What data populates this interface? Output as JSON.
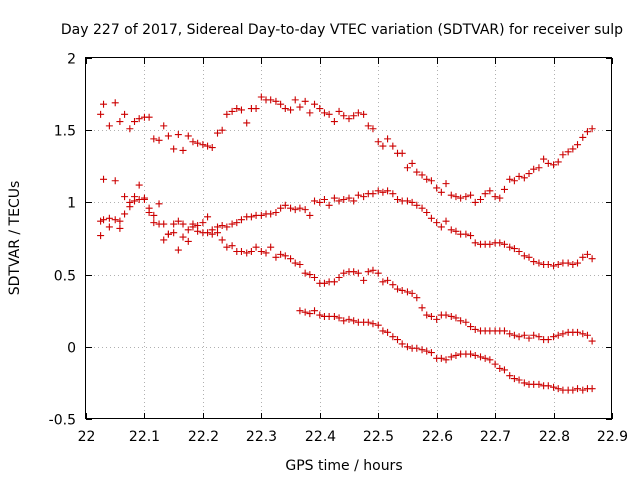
{
  "chart_data": {
    "type": "scatter",
    "title": "Day 227 of 2017, Sidereal Day-to-day VTEC variation (SDTVAR) for receiver sulp",
    "xlabel": "GPS time / hours",
    "ylabel": "SDTVAR / TECUs",
    "xlim": [
      22,
      22.9
    ],
    "ylim": [
      -0.5,
      2
    ],
    "xticks": [
      22,
      22.1,
      22.2,
      22.3,
      22.4,
      22.5,
      22.6,
      22.7,
      22.8,
      22.9
    ],
    "xtick_labels": [
      "22",
      "22.1",
      "22.2",
      "22.3",
      "22.4",
      "22.5",
      "22.6",
      "22.7",
      "22.8",
      "22.9"
    ],
    "yticks": [
      -0.5,
      0,
      0.5,
      1,
      1.5,
      2
    ],
    "ytick_labels": [
      "-0.5",
      "0",
      "0.5",
      "1",
      "1.5",
      "2"
    ],
    "grid": true,
    "marker": "+",
    "color": "#cc0000",
    "series": [
      {
        "name": "series-1",
        "x": [
          22.025,
          22.03,
          22.04,
          22.05,
          22.058,
          22.066,
          22.075,
          22.083,
          22.091,
          22.1,
          22.108,
          22.116,
          22.125,
          22.133,
          22.141,
          22.15,
          22.158,
          22.166,
          22.175,
          22.183,
          22.191,
          22.2,
          22.208,
          22.216,
          22.225,
          22.233,
          22.241,
          22.25,
          22.258,
          22.266,
          22.275,
          22.283,
          22.291,
          22.3,
          22.308,
          22.316,
          22.325,
          22.333,
          22.341,
          22.35,
          22.358,
          22.366,
          22.375,
          22.383,
          22.391,
          22.4,
          22.408,
          22.416,
          22.425,
          22.433,
          22.441,
          22.45,
          22.458,
          22.466,
          22.475,
          22.483,
          22.491,
          22.5,
          22.508,
          22.516,
          22.525,
          22.533,
          22.541,
          22.55,
          22.558,
          22.566,
          22.575,
          22.583,
          22.591,
          22.6,
          22.608,
          22.616,
          22.625,
          22.633,
          22.641,
          22.65,
          22.658,
          22.666,
          22.675,
          22.683,
          22.691,
          22.7,
          22.708,
          22.716,
          22.725,
          22.733,
          22.741,
          22.75,
          22.758,
          22.766,
          22.775,
          22.783,
          22.791,
          22.8,
          22.808,
          22.816,
          22.825,
          22.833,
          22.841,
          22.85,
          22.858,
          22.866
        ],
        "y": [
          1.61,
          1.68,
          1.53,
          1.69,
          1.56,
          1.61,
          1.51,
          1.56,
          1.58,
          1.59,
          1.59,
          1.44,
          1.43,
          1.53,
          1.46,
          1.37,
          1.47,
          1.36,
          1.46,
          1.42,
          1.41,
          1.4,
          1.39,
          1.38,
          1.48,
          1.5,
          1.61,
          1.63,
          1.65,
          1.64,
          1.55,
          1.65,
          1.65,
          1.73,
          1.71,
          1.71,
          1.7,
          1.68,
          1.65,
          1.64,
          1.71,
          1.66,
          1.7,
          1.62,
          1.68,
          1.65,
          1.62,
          1.61,
          1.56,
          1.63,
          1.6,
          1.58,
          1.6,
          1.62,
          1.61,
          1.53,
          1.51,
          1.42,
          1.39,
          1.44,
          1.39,
          1.34,
          1.34,
          1.24,
          1.27,
          1.21,
          1.19,
          1.16,
          1.15,
          1.1,
          1.07,
          1.13,
          1.05,
          1.04,
          1.03,
          1.04,
          1.05,
          1.0,
          1.02,
          1.06,
          1.08,
          1.04,
          1.03,
          1.09,
          1.16,
          1.15,
          1.18,
          1.17,
          1.2,
          1.23,
          1.24,
          1.3,
          1.27,
          1.26,
          1.28,
          1.33,
          1.35,
          1.37,
          1.4,
          1.45,
          1.49,
          1.51
        ]
      },
      {
        "name": "series-2",
        "x": [
          22.025,
          22.03,
          22.04,
          22.05,
          22.058,
          22.066,
          22.075,
          22.083,
          22.091,
          22.1,
          22.108,
          22.116,
          22.125,
          22.133,
          22.141,
          22.15,
          22.158,
          22.166,
          22.175,
          22.183,
          22.191,
          22.2,
          22.208,
          22.216,
          22.225,
          22.233,
          22.241,
          22.25,
          22.258,
          22.266,
          22.275,
          22.283,
          22.291,
          22.3,
          22.308,
          22.316,
          22.325,
          22.333,
          22.341,
          22.35,
          22.358,
          22.366,
          22.375,
          22.383,
          22.391,
          22.4,
          22.408,
          22.416,
          22.425,
          22.433,
          22.441,
          22.45,
          22.458,
          22.466,
          22.475,
          22.483,
          22.491,
          22.5,
          22.508,
          22.516,
          22.525,
          22.533,
          22.541,
          22.55,
          22.558,
          22.566,
          22.575,
          22.583,
          22.591,
          22.6,
          22.608,
          22.616,
          22.625,
          22.633,
          22.641,
          22.65,
          22.658,
          22.666,
          22.675,
          22.683,
          22.691,
          22.7,
          22.708,
          22.716,
          22.725,
          22.733,
          22.741,
          22.75,
          22.758,
          22.766,
          22.775,
          22.783,
          22.791,
          22.8,
          22.808,
          22.816,
          22.825,
          22.833,
          22.841,
          22.85,
          22.858,
          22.866
        ],
        "y": [
          0.87,
          1.16,
          0.83,
          1.15,
          0.87,
          1.04,
          1.0,
          1.04,
          1.12,
          1.03,
          0.96,
          0.86,
          0.99,
          0.85,
          0.78,
          0.79,
          0.87,
          0.85,
          0.81,
          0.85,
          0.84,
          0.86,
          0.9,
          0.81,
          0.83,
          0.84,
          0.83,
          0.85,
          0.86,
          0.88,
          0.9,
          0.9,
          0.91,
          0.91,
          0.92,
          0.92,
          0.93,
          0.96,
          0.98,
          0.96,
          0.95,
          0.96,
          0.95,
          0.91,
          1.01,
          1.0,
          1.02,
          0.98,
          1.03,
          1.01,
          1.02,
          1.03,
          1.01,
          1.05,
          1.04,
          1.06,
          1.06,
          1.08,
          1.07,
          1.08,
          1.06,
          1.02,
          1.01,
          1.01,
          1.0,
          0.98,
          0.96,
          0.93,
          0.89,
          0.86,
          0.83,
          0.87,
          0.81,
          0.8,
          0.78,
          0.78,
          0.77,
          0.72,
          0.71,
          0.71,
          0.71,
          0.72,
          0.72,
          0.71,
          0.69,
          0.68,
          0.66,
          0.63,
          0.62,
          0.59,
          0.58,
          0.57,
          0.57,
          0.56,
          0.57,
          0.58,
          0.58,
          0.57,
          0.58,
          0.62,
          0.64,
          0.61
        ]
      },
      {
        "name": "series-3",
        "x": [
          22.025,
          22.03,
          22.04,
          22.05,
          22.058,
          22.066,
          22.075,
          22.083,
          22.091,
          22.1,
          22.108,
          22.116,
          22.125,
          22.133,
          22.141,
          22.15,
          22.158,
          22.166,
          22.175,
          22.183,
          22.191,
          22.2,
          22.208,
          22.216,
          22.225,
          22.233,
          22.241,
          22.25,
          22.258,
          22.266,
          22.275,
          22.283,
          22.291,
          22.3,
          22.308,
          22.316,
          22.325,
          22.333,
          22.341,
          22.35,
          22.358,
          22.366,
          22.375,
          22.383,
          22.391,
          22.4,
          22.408,
          22.416,
          22.425,
          22.433,
          22.441,
          22.45,
          22.458,
          22.466,
          22.475,
          22.483,
          22.491,
          22.5,
          22.508,
          22.516,
          22.525,
          22.533,
          22.541,
          22.55,
          22.558,
          22.566,
          22.575,
          22.583,
          22.591,
          22.6,
          22.608,
          22.616,
          22.625,
          22.633,
          22.641,
          22.65,
          22.658,
          22.666,
          22.675,
          22.683,
          22.691,
          22.7,
          22.708,
          22.716,
          22.725,
          22.733,
          22.741,
          22.75,
          22.758,
          22.766,
          22.775,
          22.783,
          22.791,
          22.8,
          22.808,
          22.816,
          22.825,
          22.833,
          22.841,
          22.85,
          22.858,
          22.866
        ],
        "y": [
          0.77,
          0.88,
          0.89,
          0.88,
          0.82,
          0.92,
          0.97,
          1.01,
          1.02,
          1.02,
          0.93,
          0.91,
          0.85,
          0.74,
          0.78,
          0.85,
          0.67,
          0.76,
          0.73,
          0.83,
          0.8,
          0.79,
          0.79,
          0.78,
          0.79,
          0.74,
          0.69,
          0.7,
          0.66,
          0.66,
          0.65,
          0.66,
          0.69,
          0.66,
          0.65,
          0.69,
          0.62,
          0.64,
          0.63,
          0.61,
          0.58,
          0.57,
          0.51,
          0.5,
          0.48,
          0.44,
          0.44,
          0.45,
          0.45,
          0.48,
          0.51,
          0.52,
          0.52,
          0.51,
          0.46,
          0.52,
          0.53,
          0.51,
          0.45,
          0.46,
          0.43,
          0.4,
          0.39,
          0.38,
          0.37,
          0.34,
          0.27,
          0.22,
          0.21,
          0.19,
          0.22,
          0.22,
          0.21,
          0.2,
          0.18,
          0.17,
          0.14,
          0.12,
          0.11,
          0.11,
          0.11,
          0.11,
          0.11,
          0.11,
          0.09,
          0.08,
          0.07,
          0.08,
          0.06,
          0.08,
          0.07,
          0.05,
          0.05,
          0.07,
          0.08,
          0.09,
          0.1,
          0.1,
          0.1,
          0.09,
          0.08,
          0.04
        ]
      },
      {
        "name": "series-4",
        "x": [
          22.366,
          22.375,
          22.383,
          22.391,
          22.4,
          22.408,
          22.416,
          22.425,
          22.433,
          22.441,
          22.45,
          22.458,
          22.466,
          22.475,
          22.483,
          22.491,
          22.5,
          22.508,
          22.516,
          22.525,
          22.533,
          22.541,
          22.55,
          22.558,
          22.566,
          22.575,
          22.583,
          22.591,
          22.6,
          22.608,
          22.616,
          22.625,
          22.633,
          22.641,
          22.65,
          22.658,
          22.666,
          22.675,
          22.683,
          22.691,
          22.7,
          22.708,
          22.716,
          22.725,
          22.733,
          22.741,
          22.75,
          22.758,
          22.766,
          22.775,
          22.783,
          22.791,
          22.8,
          22.808,
          22.816,
          22.825,
          22.833,
          22.841,
          22.85,
          22.858,
          22.866
        ],
        "y": [
          0.25,
          0.24,
          0.23,
          0.25,
          0.22,
          0.21,
          0.21,
          0.21,
          0.2,
          0.18,
          0.19,
          0.18,
          0.17,
          0.17,
          0.17,
          0.16,
          0.15,
          0.11,
          0.1,
          0.07,
          0.05,
          0.02,
          0.0,
          -0.01,
          -0.01,
          -0.02,
          -0.03,
          -0.04,
          -0.08,
          -0.08,
          -0.09,
          -0.07,
          -0.06,
          -0.05,
          -0.05,
          -0.05,
          -0.06,
          -0.07,
          -0.08,
          -0.09,
          -0.12,
          -0.15,
          -0.16,
          -0.2,
          -0.22,
          -0.23,
          -0.25,
          -0.26,
          -0.26,
          -0.26,
          -0.27,
          -0.27,
          -0.28,
          -0.29,
          -0.3,
          -0.3,
          -0.3,
          -0.29,
          -0.3,
          -0.29,
          -0.29
        ]
      }
    ]
  }
}
